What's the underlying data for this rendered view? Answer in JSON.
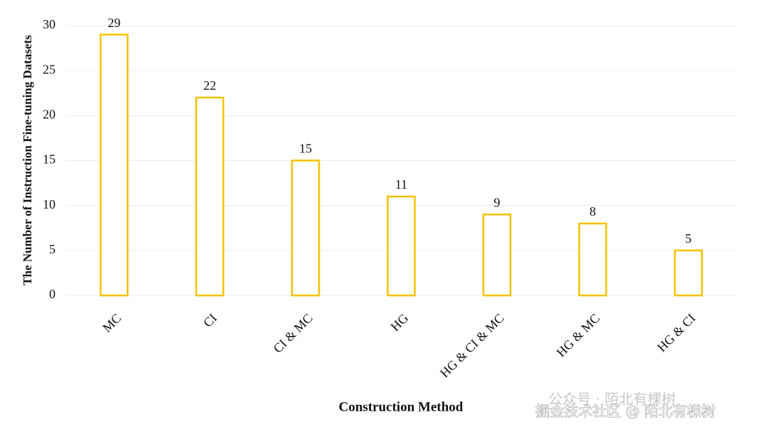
{
  "chart_data": {
    "type": "bar",
    "x_label": "Construction Method",
    "y_label": "The Number of Instruction Fine-tuning Datasets",
    "categories": [
      "MC",
      "CI",
      "CI & MC",
      "HG",
      "HG & CI & MC",
      "HG & MC",
      "HG & CI"
    ],
    "values": [
      29,
      22,
      15,
      11,
      9,
      8,
      5
    ],
    "color": "#f5c200",
    "ylim": [
      0,
      30
    ],
    "yticks": [
      0,
      5,
      10,
      15,
      20,
      25,
      30
    ],
    "grid": true
  },
  "watermarks": [
    "公众号 · 陌北有棵树",
    "掘金技术社区 @ 陌北有棵树"
  ]
}
